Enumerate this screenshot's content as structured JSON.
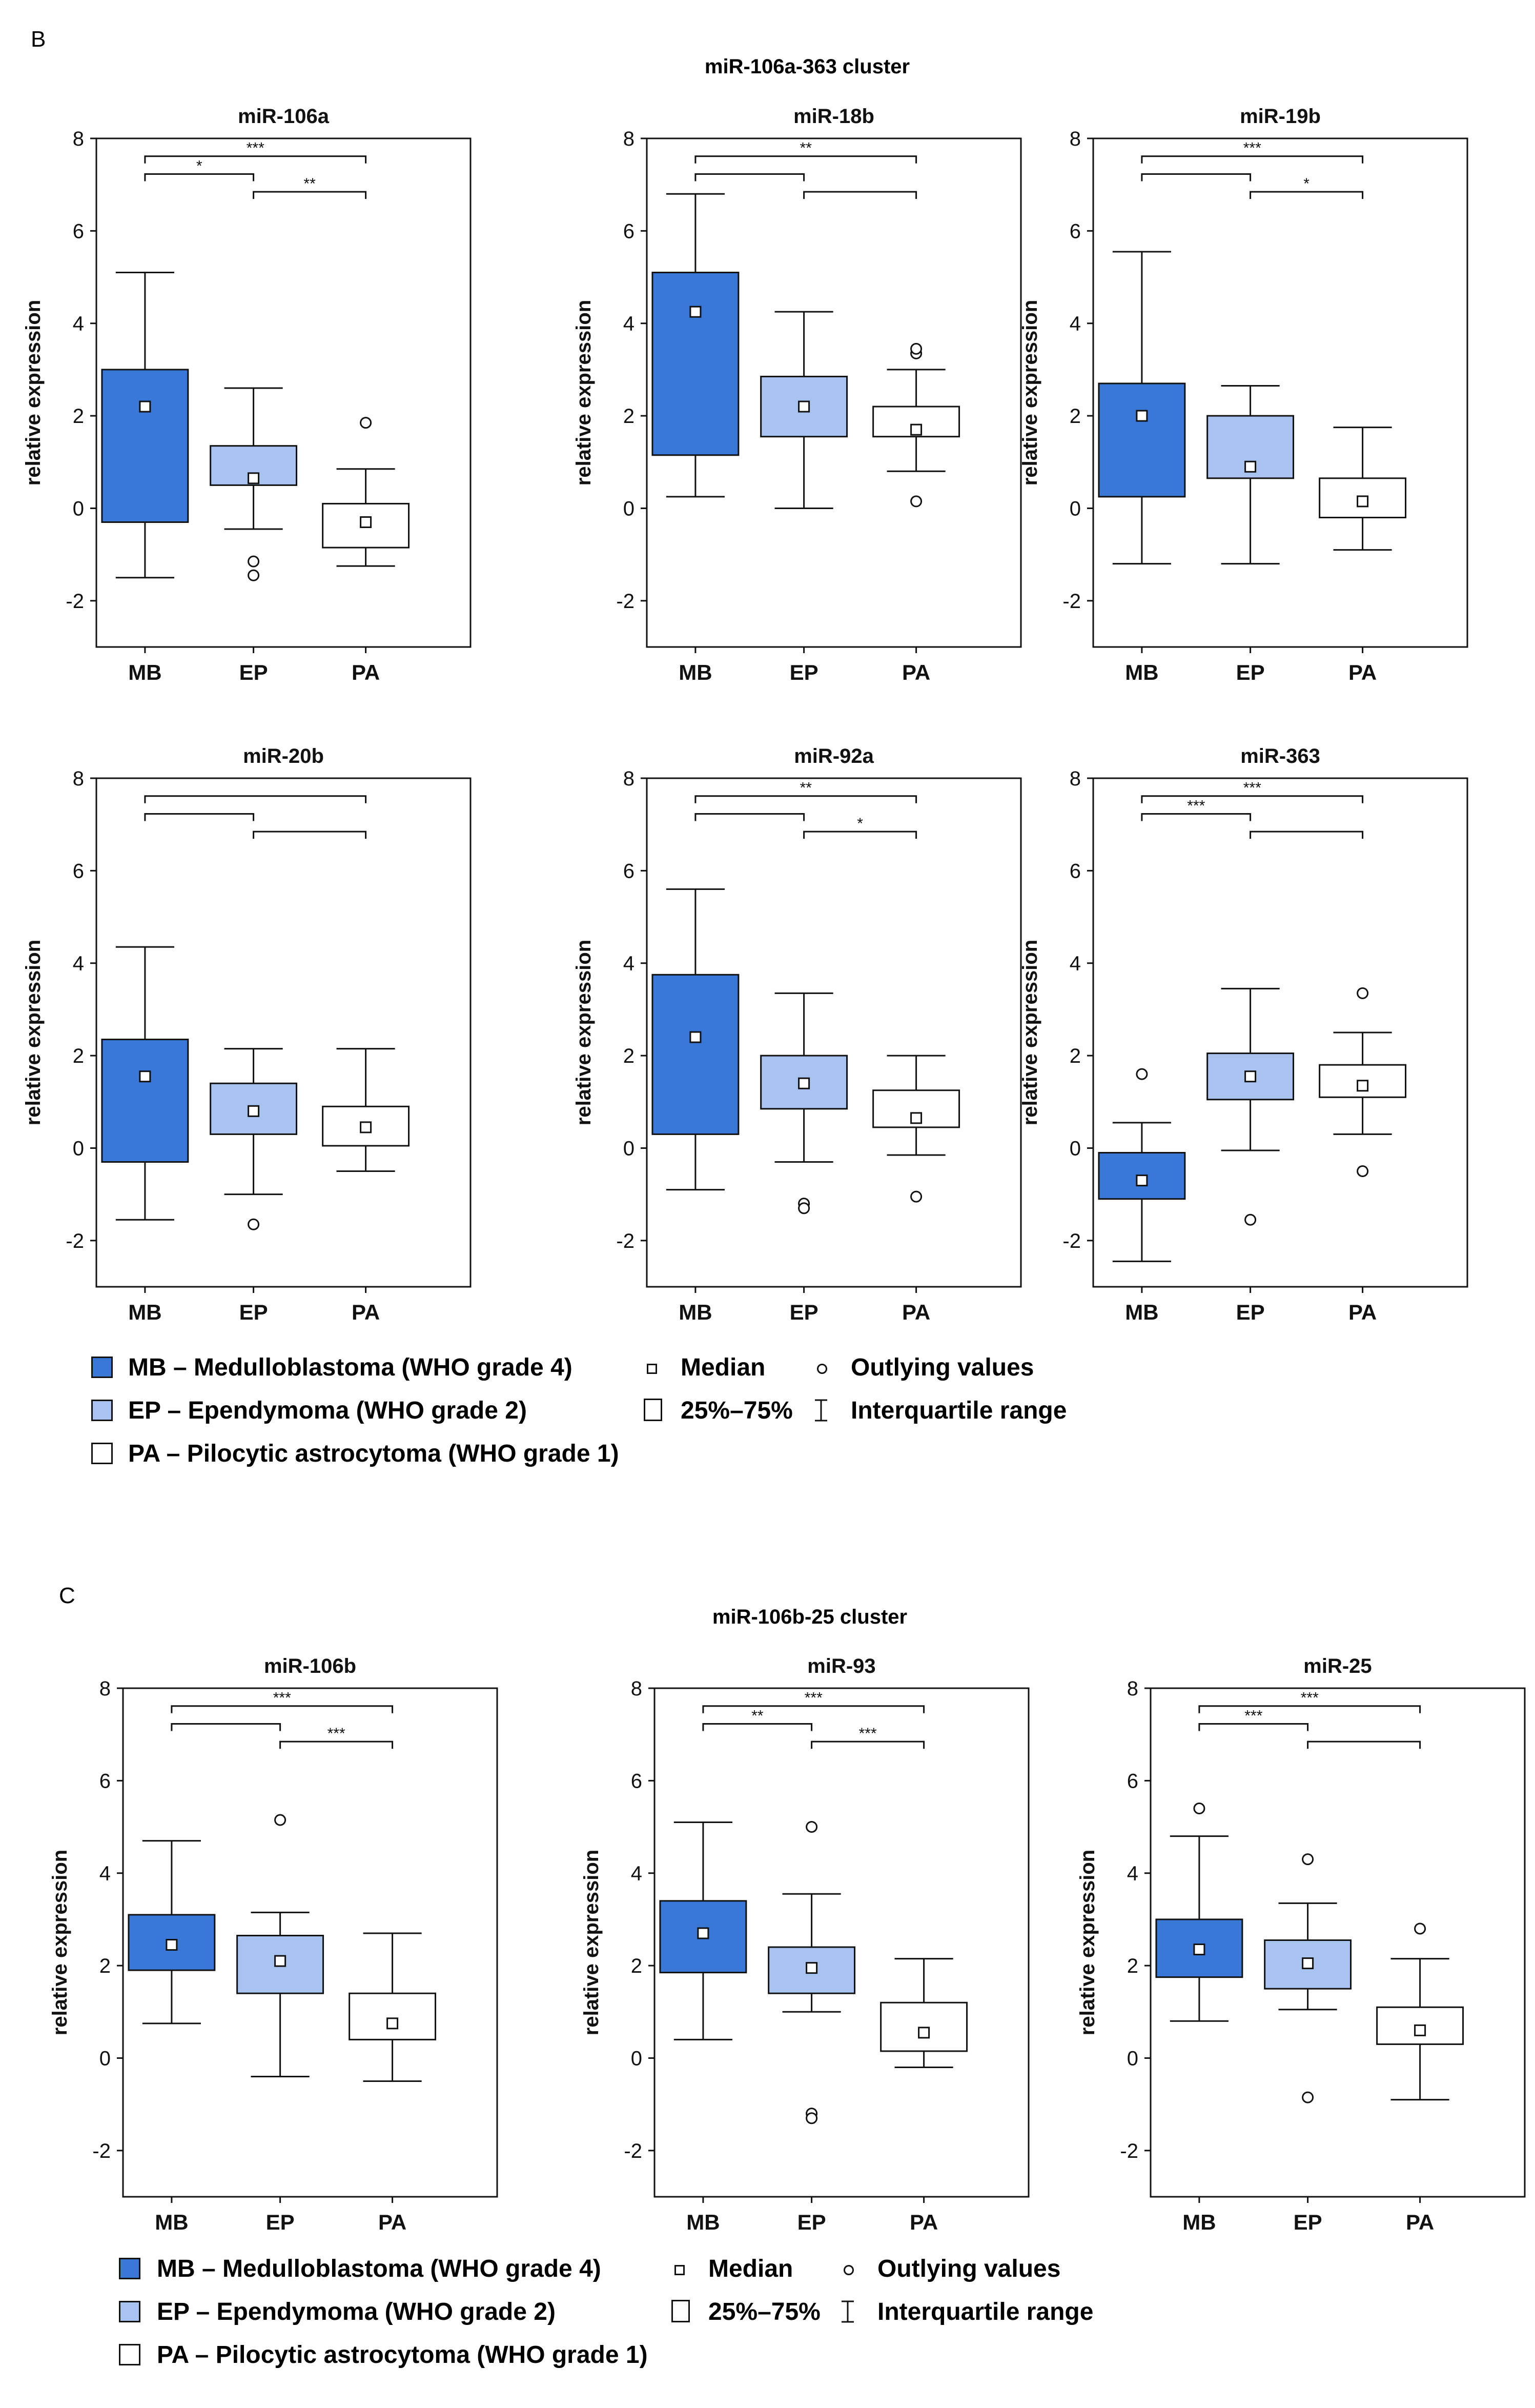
{
  "colors": {
    "MB": "#3a78d8",
    "EP": "#a8c3f0",
    "PA": "#ffffff",
    "stroke": "#111111"
  },
  "sections": [
    {
      "label": "B",
      "cluster_title": "miR-106a-363 cluster",
      "legend": {
        "mb": "MB – Medulloblastoma (WHO grade 4)",
        "ep": "EP – Ependymoma (WHO grade 2)",
        "pa": "PA – Pilocytic astrocytoma (WHO grade 1)",
        "median": "Median",
        "box": "25%–75%",
        "outliers": "Outlying values",
        "iqr": "Interquartile range"
      }
    },
    {
      "label": "C",
      "cluster_title": "miR-106b-25 cluster",
      "legend": {
        "mb": "MB – Medulloblastoma (WHO grade 4)",
        "ep": "EP – Ependymoma (WHO grade 2)",
        "pa": "PA – Pilocytic astrocytoma (WHO grade 1)",
        "median": "Median",
        "box": "25%–75%",
        "outliers": "Outlying values",
        "iqr": "Interquartile range"
      }
    }
  ],
  "chart_data": [
    {
      "type": "box",
      "title": "miR-106a",
      "ylabel": "relative expression",
      "categories": [
        "MB",
        "EP",
        "PA"
      ],
      "ylim": [
        -3,
        8
      ],
      "yticks": [
        -2,
        0,
        2,
        4,
        6,
        8
      ],
      "boxes": [
        {
          "group": "MB",
          "whisker_low": -1.5,
          "q1": -0.3,
          "median": 2.2,
          "q3": 3.0,
          "whisker_high": 5.1,
          "outliers": []
        },
        {
          "group": "EP",
          "whisker_low": -0.45,
          "q1": 0.5,
          "median": 0.65,
          "q3": 1.35,
          "whisker_high": 2.6,
          "outliers": [
            -1.15,
            -1.45
          ]
        },
        {
          "group": "PA",
          "whisker_low": -1.25,
          "q1": -0.85,
          "median": -0.3,
          "q3": 0.1,
          "whisker_high": 0.85,
          "outliers": [
            1.85
          ]
        }
      ],
      "brackets": [
        {
          "from": "MB",
          "to": "PA",
          "label": "***",
          "level": 2
        },
        {
          "from": "MB",
          "to": "EP",
          "label": "*",
          "level": 1
        },
        {
          "from": "EP",
          "to": "PA",
          "label": "**",
          "level": 0
        }
      ]
    },
    {
      "type": "box",
      "title": "miR-18b",
      "ylabel": "relative expression",
      "categories": [
        "MB",
        "EP",
        "PA"
      ],
      "ylim": [
        -3,
        8
      ],
      "yticks": [
        -2,
        0,
        2,
        4,
        6,
        8
      ],
      "boxes": [
        {
          "group": "MB",
          "whisker_low": 0.25,
          "q1": 1.15,
          "median": 4.25,
          "q3": 5.1,
          "whisker_high": 6.8,
          "outliers": []
        },
        {
          "group": "EP",
          "whisker_low": 0.0,
          "q1": 1.55,
          "median": 2.2,
          "q3": 2.85,
          "whisker_high": 4.25,
          "outliers": []
        },
        {
          "group": "PA",
          "whisker_low": 0.8,
          "q1": 1.55,
          "median": 1.7,
          "q3": 2.2,
          "whisker_high": 3.0,
          "outliers": [
            3.35,
            3.45,
            0.15
          ]
        }
      ],
      "brackets": [
        {
          "from": "MB",
          "to": "PA",
          "label": "**",
          "level": 2
        },
        {
          "from": "MB",
          "to": "EP",
          "label": "",
          "level": 1
        },
        {
          "from": "EP",
          "to": "PA",
          "label": "",
          "level": 0
        }
      ]
    },
    {
      "type": "box",
      "title": "miR-19b",
      "ylabel": "relative expression",
      "categories": [
        "MB",
        "EP",
        "PA"
      ],
      "ylim": [
        -3,
        8
      ],
      "yticks": [
        -2,
        0,
        2,
        4,
        6,
        8
      ],
      "boxes": [
        {
          "group": "MB",
          "whisker_low": -1.2,
          "q1": 0.25,
          "median": 2.0,
          "q3": 2.7,
          "whisker_high": 5.55,
          "outliers": []
        },
        {
          "group": "EP",
          "whisker_low": -1.2,
          "q1": 0.65,
          "median": 0.9,
          "q3": 2.0,
          "whisker_high": 2.65,
          "outliers": []
        },
        {
          "group": "PA",
          "whisker_low": -0.9,
          "q1": -0.2,
          "median": 0.15,
          "q3": 0.65,
          "whisker_high": 1.75,
          "outliers": []
        }
      ],
      "brackets": [
        {
          "from": "MB",
          "to": "PA",
          "label": "***",
          "level": 2
        },
        {
          "from": "MB",
          "to": "EP",
          "label": "",
          "level": 1
        },
        {
          "from": "EP",
          "to": "PA",
          "label": "*",
          "level": 0
        }
      ]
    },
    {
      "type": "box",
      "title": "miR-20b",
      "ylabel": "relative expression",
      "categories": [
        "MB",
        "EP",
        "PA"
      ],
      "ylim": [
        -3,
        8
      ],
      "yticks": [
        -2,
        0,
        2,
        4,
        6,
        8
      ],
      "boxes": [
        {
          "group": "MB",
          "whisker_low": -1.55,
          "q1": -0.3,
          "median": 1.55,
          "q3": 2.35,
          "whisker_high": 4.35,
          "outliers": []
        },
        {
          "group": "EP",
          "whisker_low": -1.0,
          "q1": 0.3,
          "median": 0.8,
          "q3": 1.4,
          "whisker_high": 2.15,
          "outliers": [
            -1.65
          ]
        },
        {
          "group": "PA",
          "whisker_low": -0.5,
          "q1": 0.05,
          "median": 0.45,
          "q3": 0.9,
          "whisker_high": 2.15,
          "outliers": []
        }
      ],
      "brackets": [
        {
          "from": "MB",
          "to": "PA",
          "label": "",
          "level": 2
        },
        {
          "from": "MB",
          "to": "EP",
          "label": "",
          "level": 1
        },
        {
          "from": "EP",
          "to": "PA",
          "label": "",
          "level": 0
        }
      ]
    },
    {
      "type": "box",
      "title": "miR-92a",
      "ylabel": "relative expression",
      "categories": [
        "MB",
        "EP",
        "PA"
      ],
      "ylim": [
        -3,
        8
      ],
      "yticks": [
        -2,
        0,
        2,
        4,
        6,
        8
      ],
      "boxes": [
        {
          "group": "MB",
          "whisker_low": -0.9,
          "q1": 0.3,
          "median": 2.4,
          "q3": 3.75,
          "whisker_high": 5.6,
          "outliers": []
        },
        {
          "group": "EP",
          "whisker_low": -0.3,
          "q1": 0.85,
          "median": 1.4,
          "q3": 2.0,
          "whisker_high": 3.35,
          "outliers": [
            -1.2,
            -1.3
          ]
        },
        {
          "group": "PA",
          "whisker_low": -0.15,
          "q1": 0.45,
          "median": 0.65,
          "q3": 1.25,
          "whisker_high": 2.0,
          "outliers": [
            -1.05
          ]
        }
      ],
      "brackets": [
        {
          "from": "MB",
          "to": "PA",
          "label": "**",
          "level": 2
        },
        {
          "from": "MB",
          "to": "EP",
          "label": "",
          "level": 1
        },
        {
          "from": "EP",
          "to": "PA",
          "label": "*",
          "level": 0
        }
      ]
    },
    {
      "type": "box",
      "title": "miR-363",
      "ylabel": "relative expression",
      "categories": [
        "MB",
        "EP",
        "PA"
      ],
      "ylim": [
        -3,
        8
      ],
      "yticks": [
        -2,
        0,
        2,
        4,
        6,
        8
      ],
      "boxes": [
        {
          "group": "MB",
          "whisker_low": -2.45,
          "q1": -1.1,
          "median": -0.7,
          "q3": -0.1,
          "whisker_high": 0.55,
          "outliers": [
            1.6
          ]
        },
        {
          "group": "EP",
          "whisker_low": -0.05,
          "q1": 1.05,
          "median": 1.55,
          "q3": 2.05,
          "whisker_high": 3.45,
          "outliers": [
            -1.55
          ]
        },
        {
          "group": "PA",
          "whisker_low": 0.3,
          "q1": 1.1,
          "median": 1.35,
          "q3": 1.8,
          "whisker_high": 2.5,
          "outliers": [
            3.35,
            -0.5
          ]
        }
      ],
      "brackets": [
        {
          "from": "MB",
          "to": "PA",
          "label": "***",
          "level": 2
        },
        {
          "from": "MB",
          "to": "EP",
          "label": "***",
          "level": 1
        },
        {
          "from": "EP",
          "to": "PA",
          "label": "",
          "level": 0
        }
      ]
    },
    {
      "type": "box",
      "title": "miR-106b",
      "ylabel": "relative expression",
      "categories": [
        "MB",
        "EP",
        "PA"
      ],
      "ylim": [
        -3,
        8
      ],
      "yticks": [
        -2,
        0,
        2,
        4,
        6,
        8
      ],
      "boxes": [
        {
          "group": "MB",
          "whisker_low": 0.75,
          "q1": 1.9,
          "median": 2.45,
          "q3": 3.1,
          "whisker_high": 4.7,
          "outliers": []
        },
        {
          "group": "EP",
          "whisker_low": -0.4,
          "q1": 1.4,
          "median": 2.1,
          "q3": 2.65,
          "whisker_high": 3.15,
          "outliers": [
            5.15
          ]
        },
        {
          "group": "PA",
          "whisker_low": -0.5,
          "q1": 0.4,
          "median": 0.75,
          "q3": 1.4,
          "whisker_high": 2.7,
          "outliers": []
        }
      ],
      "brackets": [
        {
          "from": "MB",
          "to": "PA",
          "label": "***",
          "level": 2
        },
        {
          "from": "MB",
          "to": "EP",
          "label": "",
          "level": 1
        },
        {
          "from": "EP",
          "to": "PA",
          "label": "***",
          "level": 0
        }
      ]
    },
    {
      "type": "box",
      "title": "miR-93",
      "ylabel": "relative expression",
      "categories": [
        "MB",
        "EP",
        "PA"
      ],
      "ylim": [
        -3,
        8
      ],
      "yticks": [
        -2,
        0,
        2,
        4,
        6,
        8
      ],
      "boxes": [
        {
          "group": "MB",
          "whisker_low": 0.4,
          "q1": 1.85,
          "median": 2.7,
          "q3": 3.4,
          "whisker_high": 5.1,
          "outliers": []
        },
        {
          "group": "EP",
          "whisker_low": 1.0,
          "q1": 1.4,
          "median": 1.95,
          "q3": 2.4,
          "whisker_high": 3.55,
          "outliers": [
            5.0,
            -1.2,
            -1.3
          ]
        },
        {
          "group": "PA",
          "whisker_low": -0.2,
          "q1": 0.15,
          "median": 0.55,
          "q3": 1.2,
          "whisker_high": 2.15,
          "outliers": []
        }
      ],
      "brackets": [
        {
          "from": "MB",
          "to": "PA",
          "label": "***",
          "level": 2
        },
        {
          "from": "MB",
          "to": "EP",
          "label": "**",
          "level": 1
        },
        {
          "from": "EP",
          "to": "PA",
          "label": "***",
          "level": 0
        }
      ]
    },
    {
      "type": "box",
      "title": "miR-25",
      "ylabel": "relative expression",
      "categories": [
        "MB",
        "EP",
        "PA"
      ],
      "ylim": [
        -3,
        8
      ],
      "yticks": [
        -2,
        0,
        2,
        4,
        6,
        8
      ],
      "boxes": [
        {
          "group": "MB",
          "whisker_low": 0.8,
          "q1": 1.75,
          "median": 2.35,
          "q3": 3.0,
          "whisker_high": 4.8,
          "outliers": [
            5.4
          ]
        },
        {
          "group": "EP",
          "whisker_low": 1.05,
          "q1": 1.5,
          "median": 2.05,
          "q3": 2.55,
          "whisker_high": 3.35,
          "outliers": [
            4.3,
            -0.85
          ]
        },
        {
          "group": "PA",
          "whisker_low": -0.9,
          "q1": 0.3,
          "median": 0.6,
          "q3": 1.1,
          "whisker_high": 2.15,
          "outliers": [
            2.8
          ]
        }
      ],
      "brackets": [
        {
          "from": "MB",
          "to": "PA",
          "label": "***",
          "level": 2
        },
        {
          "from": "MB",
          "to": "EP",
          "label": "***",
          "level": 1
        },
        {
          "from": "EP",
          "to": "PA",
          "label": "",
          "level": 0
        }
      ]
    }
  ]
}
